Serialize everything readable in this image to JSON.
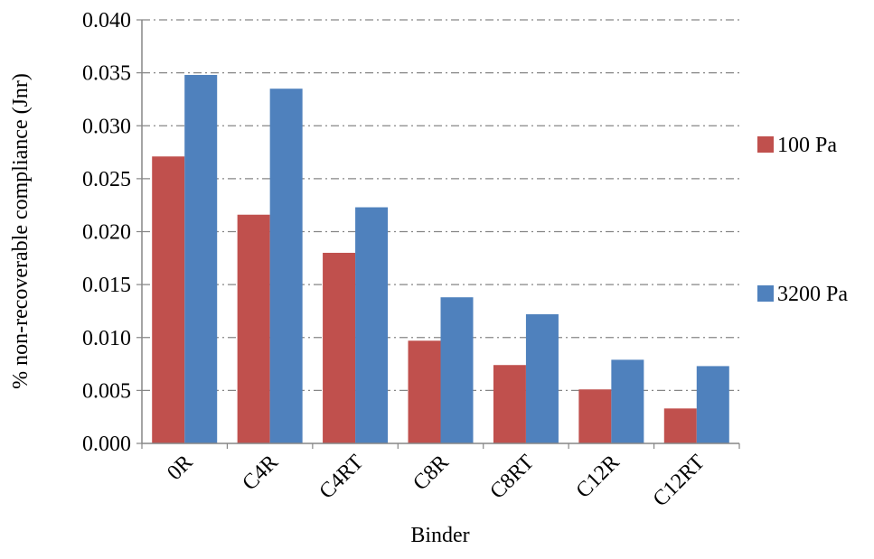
{
  "chart_data": {
    "type": "bar",
    "title": "",
    "xlabel": "Binder",
    "ylabel": "% non-recoverable compliance (Jnr)",
    "ylim": [
      0,
      0.04
    ],
    "ytick_step": 0.005,
    "ytick_labels": [
      "0.000",
      "0.005",
      "0.010",
      "0.015",
      "0.020",
      "0.025",
      "0.030",
      "0.035",
      "0.040"
    ],
    "grid": "horizontal dash-dot",
    "legend_position": "right",
    "categories": [
      "0R",
      "C4R",
      "C4RT",
      "C8R",
      "C8RT",
      "C12R",
      "C12RT"
    ],
    "series": [
      {
        "name": "100 Pa",
        "color": "#c0504d",
        "values": [
          0.0271,
          0.0216,
          0.018,
          0.0097,
          0.0074,
          0.0051,
          0.0033
        ]
      },
      {
        "name": "3200 Pa",
        "color": "#4f81bd",
        "values": [
          0.0348,
          0.0335,
          0.0223,
          0.0138,
          0.0122,
          0.0079,
          0.0073
        ]
      }
    ]
  }
}
